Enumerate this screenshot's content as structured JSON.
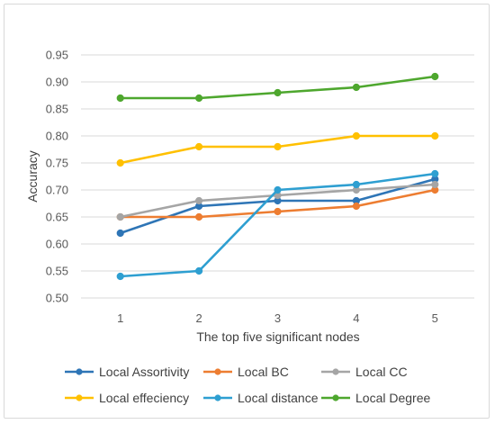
{
  "chart_data": {
    "type": "line",
    "title": "",
    "xlabel": "The top five significant nodes",
    "ylabel": "Accuracy",
    "x": [
      "1",
      "2",
      "3",
      "4",
      "5"
    ],
    "ylim": [
      0.5,
      0.95
    ],
    "yticks": [
      "0.50",
      "0.55",
      "0.60",
      "0.65",
      "0.70",
      "0.75",
      "0.80",
      "0.85",
      "0.90",
      "0.95"
    ],
    "grid": "horizontal",
    "legend": "bottom",
    "series": [
      {
        "name": "Local Assortivity",
        "color": "#2E75B6",
        "values": [
          0.62,
          0.67,
          0.68,
          0.68,
          0.72
        ]
      },
      {
        "name": "Local BC",
        "color": "#ED7D31",
        "values": [
          0.65,
          0.65,
          0.66,
          0.67,
          0.7
        ]
      },
      {
        "name": "Local CC",
        "color": "#A5A5A5",
        "values": [
          0.65,
          0.68,
          0.69,
          0.7,
          0.71
        ]
      },
      {
        "name": "Local effeciency",
        "color": "#FFC000",
        "values": [
          0.75,
          0.78,
          0.78,
          0.8,
          0.8
        ]
      },
      {
        "name": "Local distance",
        "color": "#2E9FD1",
        "values": [
          0.54,
          0.55,
          0.7,
          0.71,
          0.73
        ]
      },
      {
        "name": "Local Degree",
        "color": "#4EA72E",
        "values": [
          0.87,
          0.87,
          0.88,
          0.89,
          0.91
        ]
      }
    ]
  }
}
